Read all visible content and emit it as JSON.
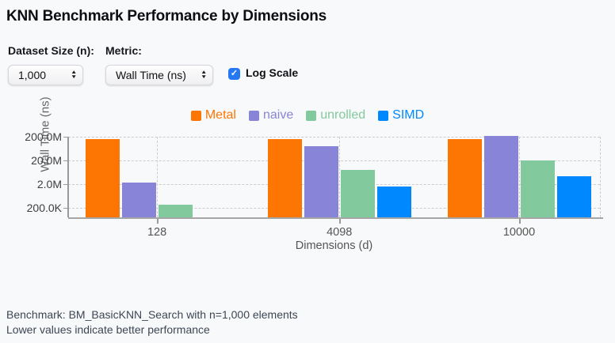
{
  "title": "KNN Benchmark Performance by Dimensions",
  "controls": {
    "dataset_size_label": "Dataset Size (n):",
    "dataset_size_value": "1,000",
    "metric_label": "Metric:",
    "metric_value": "Wall Time (ns)",
    "log_scale_label": "Log Scale",
    "log_scale_checked": true,
    "checkbox_color": "#2478f2"
  },
  "icons": {
    "stepper_up": "▲",
    "stepper_down": "▼",
    "check": "✓"
  },
  "chart_data": {
    "type": "bar",
    "title": "",
    "xlabel": "Dimensions (d)",
    "ylabel": "Wall Time (ns)",
    "y_scale": "log",
    "grid": true,
    "grid_style": "dashed",
    "legend_position": "top-center",
    "categories": [
      "128",
      "4098",
      "10000"
    ],
    "series": [
      {
        "name": "Metal",
        "color": "#fd7502",
        "values": [
          160000000,
          160000000,
          165000000
        ]
      },
      {
        "name": "naive",
        "color": "#8884d8",
        "values": [
          2400000,
          80000000,
          210000000
        ]
      },
      {
        "name": "unrolled",
        "color": "#82ca9d",
        "values": [
          270000,
          8000000,
          20000000
        ]
      },
      {
        "name": "SIMD",
        "color": "#0088fe",
        "values": [
          null,
          1600000,
          4200000
        ]
      }
    ],
    "y_ticks": [
      {
        "value": 200000,
        "label": "200.0K"
      },
      {
        "value": 2000000,
        "label": "2.0M"
      },
      {
        "value": 20000000,
        "label": "20.0M"
      },
      {
        "value": 200000000,
        "label": "200.0M"
      }
    ],
    "y_axis_min": 80000
  },
  "footer": {
    "line1": "Benchmark: BM_BasicKNN_Search with n=1,000 elements",
    "line2": "Lower values indicate better performance"
  }
}
